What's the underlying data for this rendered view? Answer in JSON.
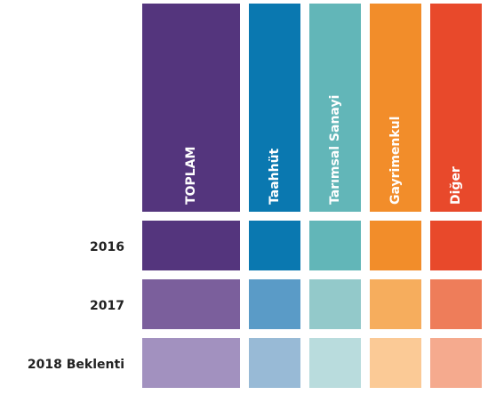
{
  "columns": [
    {
      "label": "TOPLAM",
      "colors": [
        "#54357d",
        "#7b5f9c",
        "#a291bf"
      ],
      "header_color": "#54357d"
    },
    {
      "label": "Taahhüt",
      "colors": [
        "#0a78b0",
        "#5a9bc7",
        "#98bad6"
      ],
      "header_color": "#0a78b0"
    },
    {
      "label": "Tarımsal Sanayi",
      "colors": [
        "#62b6b8",
        "#93c9ca",
        "#b9dcdd"
      ],
      "header_color": "#62b6b8"
    },
    {
      "label": "Gayrimenkul",
      "colors": [
        "#f28d2a",
        "#f6ad5d",
        "#fbca96"
      ],
      "header_color": "#f28d2a"
    },
    {
      "label": "Diğer",
      "colors": [
        "#e8492b",
        "#ee7d5a",
        "#f5aa8e"
      ],
      "header_color": "#e8492b"
    }
  ],
  "rows": [
    "2016",
    "2017",
    "2018 Beklenti"
  ]
}
